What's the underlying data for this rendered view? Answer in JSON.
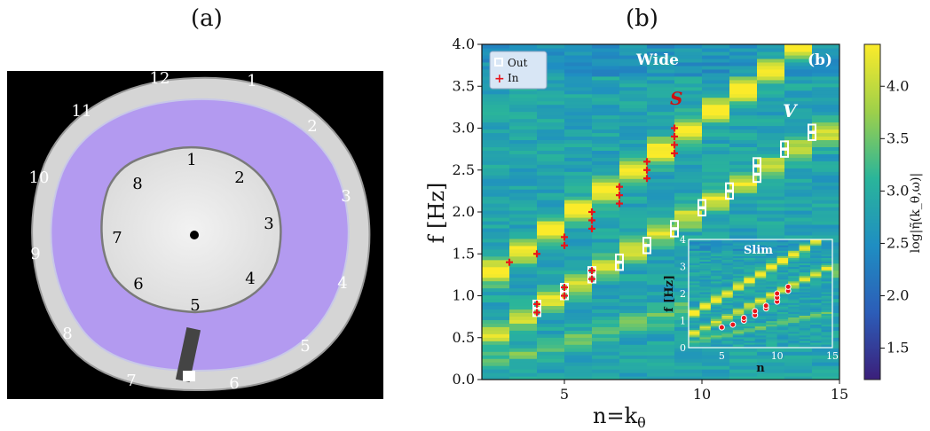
{
  "panel_a": {
    "label": "(a)",
    "outer_numbers": [
      "1",
      "2",
      "3",
      "4",
      "5",
      "6",
      "7",
      "8",
      "9",
      "10",
      "11",
      "12"
    ],
    "inner_numbers": [
      "1",
      "2",
      "3",
      "4",
      "5",
      "6",
      "7",
      "8"
    ]
  },
  "colors": {
    "fluid": "#b39af0",
    "background": "#000000",
    "marker_out": "#ffffff",
    "marker_in": "#e8141b"
  },
  "chart_data": {
    "type": "heatmap",
    "panel_label": "(b)",
    "corner_label": "(b)",
    "xlabel": "n=k",
    "xlabel_sub": "θ",
    "ylabel": "f [Hz]",
    "xlim": [
      2,
      15
    ],
    "ylim": [
      0,
      4
    ],
    "xticks": [
      "5",
      "10",
      "15"
    ],
    "yticks": [
      "0.0",
      "0.5",
      "1.0",
      "1.5",
      "2.0",
      "2.5",
      "3.0",
      "3.5",
      "4.0"
    ],
    "colorbar": {
      "label": "log|η̃(k_θ,ω)|",
      "ticks": [
        "1.5",
        "2.0",
        "2.5",
        "3.0",
        "3.5",
        "4.0"
      ],
      "range": [
        1.2,
        4.4
      ]
    },
    "annotations": {
      "wide": "Wide",
      "s": "S",
      "v": "V"
    },
    "legend": {
      "position": "top-left",
      "out": "Out",
      "in": "In"
    },
    "series": [
      {
        "name": "Out",
        "marker": "square",
        "points": [
          [
            4,
            0.8
          ],
          [
            4,
            0.9
          ],
          [
            5,
            1.0
          ],
          [
            5,
            1.1
          ],
          [
            6,
            1.2
          ],
          [
            6,
            1.3
          ],
          [
            7,
            1.35
          ],
          [
            7,
            1.45
          ],
          [
            8,
            1.55
          ],
          [
            8,
            1.65
          ],
          [
            9,
            1.75
          ],
          [
            9,
            1.85
          ],
          [
            10,
            2.0
          ],
          [
            10,
            2.1
          ],
          [
            11,
            2.2
          ],
          [
            11,
            2.3
          ],
          [
            12,
            2.4
          ],
          [
            12,
            2.5
          ],
          [
            12,
            2.6
          ],
          [
            13,
            2.7
          ],
          [
            13,
            2.8
          ],
          [
            14,
            2.9
          ],
          [
            14,
            3.0
          ]
        ]
      },
      {
        "name": "In",
        "marker": "plus",
        "points": [
          [
            3,
            1.4
          ],
          [
            4,
            0.8
          ],
          [
            4,
            0.9
          ],
          [
            4,
            1.5
          ],
          [
            5,
            1.0
          ],
          [
            5,
            1.1
          ],
          [
            5,
            1.6
          ],
          [
            5,
            1.7
          ],
          [
            6,
            1.2
          ],
          [
            6,
            1.3
          ],
          [
            6,
            1.8
          ],
          [
            6,
            1.9
          ],
          [
            6,
            2.0
          ],
          [
            7,
            2.1
          ],
          [
            7,
            2.2
          ],
          [
            7,
            2.3
          ],
          [
            8,
            2.4
          ],
          [
            8,
            2.5
          ],
          [
            8,
            2.6
          ],
          [
            9,
            2.7
          ],
          [
            9,
            2.8
          ],
          [
            9,
            2.9
          ],
          [
            9,
            3.0
          ]
        ]
      }
    ],
    "inset": {
      "title": "Slim",
      "xlabel": "n",
      "ylabel": "f [Hz]",
      "xlim": [
        2,
        15
      ],
      "ylim": [
        0,
        4
      ],
      "xticks": [
        "5",
        "10",
        "15"
      ],
      "yticks": [
        "0",
        "1",
        "2",
        "3",
        "4"
      ],
      "points": [
        [
          5,
          0.75
        ],
        [
          6,
          0.85
        ],
        [
          7,
          1.0
        ],
        [
          7,
          1.1
        ],
        [
          8,
          1.2
        ],
        [
          8,
          1.35
        ],
        [
          9,
          1.45
        ],
        [
          9,
          1.55
        ],
        [
          10,
          1.7
        ],
        [
          10,
          1.85
        ],
        [
          10,
          2.0
        ],
        [
          11,
          2.1
        ],
        [
          11,
          2.25
        ]
      ]
    }
  }
}
